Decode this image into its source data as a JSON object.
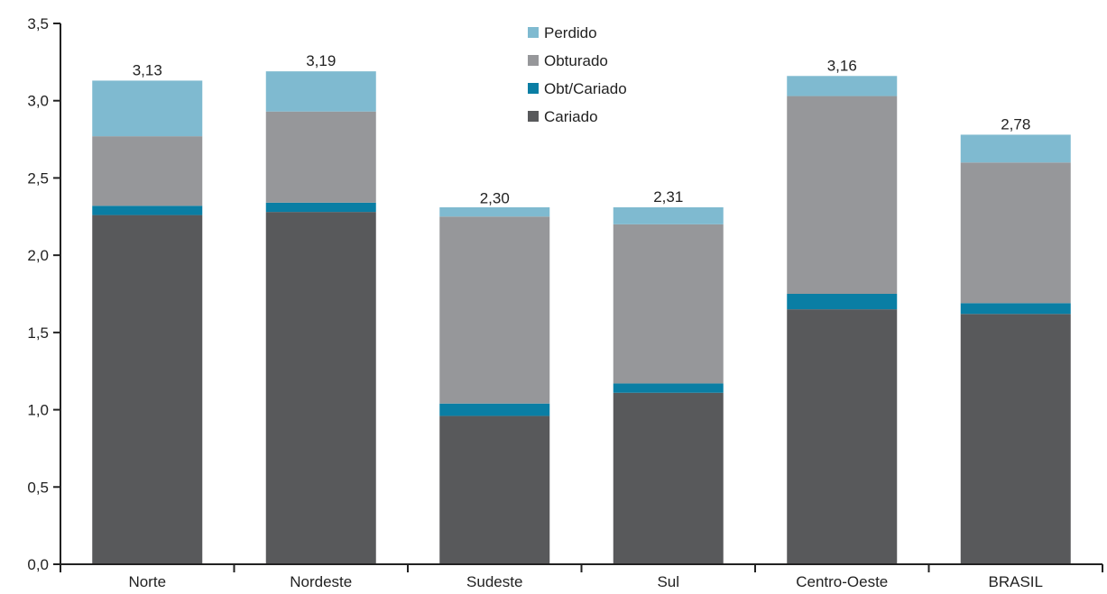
{
  "chart_data": {
    "type": "bar",
    "stacked": true,
    "categories": [
      "Norte",
      "Nordeste",
      "Sudeste",
      "Sul",
      "Centro-Oeste",
      "BRASIL"
    ],
    "series": [
      {
        "name": "Cariado",
        "color": "#58595b",
        "values": [
          2.26,
          2.28,
          0.96,
          1.11,
          1.65,
          1.62
        ]
      },
      {
        "name": "Obt/Cariado",
        "color": "#0a7ea4",
        "values": [
          0.06,
          0.06,
          0.08,
          0.06,
          0.1,
          0.07
        ]
      },
      {
        "name": "Obturado",
        "color": "#96979a",
        "values": [
          0.45,
          0.59,
          1.21,
          1.03,
          1.28,
          0.91
        ]
      },
      {
        "name": "Perdido",
        "color": "#7fbad0",
        "values": [
          0.36,
          0.26,
          0.06,
          0.11,
          0.13,
          0.18
        ]
      }
    ],
    "totals": [
      "3,13",
      "3,19",
      "2,30",
      "2,31",
      "3,16",
      "2,78"
    ],
    "total_values": [
      3.13,
      3.19,
      2.3,
      2.31,
      3.16,
      2.78
    ],
    "y_ticks": [
      "0,0",
      "0,5",
      "1,0",
      "1,5",
      "2,0",
      "2,5",
      "3,0",
      "3,5"
    ],
    "ylim": [
      0,
      3.5
    ],
    "legend_order": [
      "Perdido",
      "Obturado",
      "Obt/Cariado",
      "Cariado"
    ],
    "legend_position": "top-center",
    "grid": false,
    "title": "",
    "xlabel": "",
    "ylabel": ""
  }
}
